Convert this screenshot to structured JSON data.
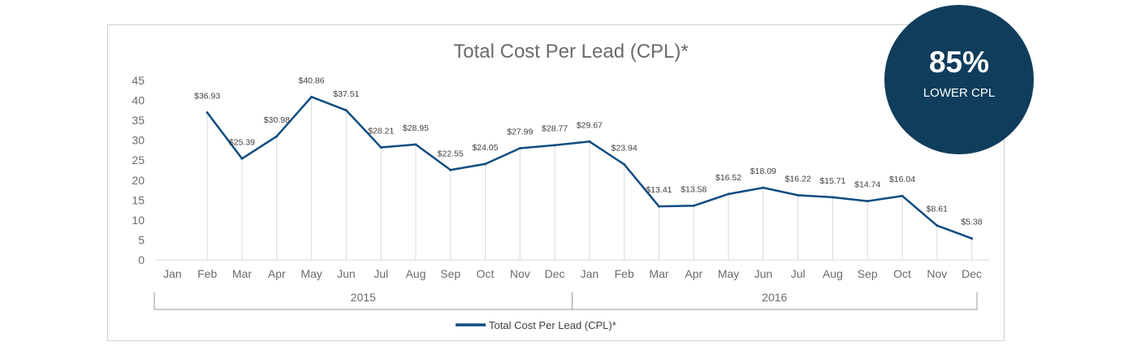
{
  "chart_data": {
    "type": "line",
    "title": "Total Cost Per Lead (CPL)*",
    "xlabel": "",
    "ylabel": "",
    "ylim": [
      0,
      45
    ],
    "yticks": [
      "0",
      "5",
      "10",
      "15",
      "20",
      "25",
      "30",
      "35",
      "40",
      "45"
    ],
    "categories": [
      "Jan",
      "Feb",
      "Mar",
      "Apr",
      "May",
      "Jun",
      "Jul",
      "Aug",
      "Sep",
      "Oct",
      "Nov",
      "Dec",
      "Jan",
      "Feb",
      "Mar",
      "Apr",
      "May",
      "Jun",
      "Jul",
      "Aug",
      "Sep",
      "Oct",
      "Nov",
      "Dec"
    ],
    "groups": [
      {
        "label": "2015",
        "start": 0,
        "end": 11
      },
      {
        "label": "2016",
        "start": 12,
        "end": 23
      }
    ],
    "series": [
      {
        "name": "Total Cost Per Lead (CPL)*",
        "color": "#0f4c81",
        "values": [
          null,
          36.93,
          25.39,
          30.98,
          40.86,
          37.51,
          28.21,
          28.95,
          22.55,
          24.05,
          27.99,
          28.77,
          29.67,
          23.94,
          13.41,
          13.58,
          16.52,
          18.09,
          16.22,
          15.71,
          14.74,
          16.04,
          8.61,
          5.38
        ],
        "labels": [
          "",
          "$36.93",
          "$25.39",
          "$30.98",
          "$40.86",
          "$37.51",
          "$28.21",
          "$28.95",
          "$22.55",
          "$24.05",
          "$27.99",
          "$28.77",
          "$29.67",
          "$23.94",
          "$13.41",
          "$13.58",
          "$16.52",
          "$18.09",
          "$16.22",
          "$15.71",
          "$14.74",
          "$16.04",
          "$8.61",
          "$5.38"
        ]
      }
    ],
    "legend": "bottom",
    "grid": "vertical drop lines"
  },
  "badge": {
    "value": "85%",
    "label": "LOWER CPL",
    "color": "#103d5c"
  }
}
